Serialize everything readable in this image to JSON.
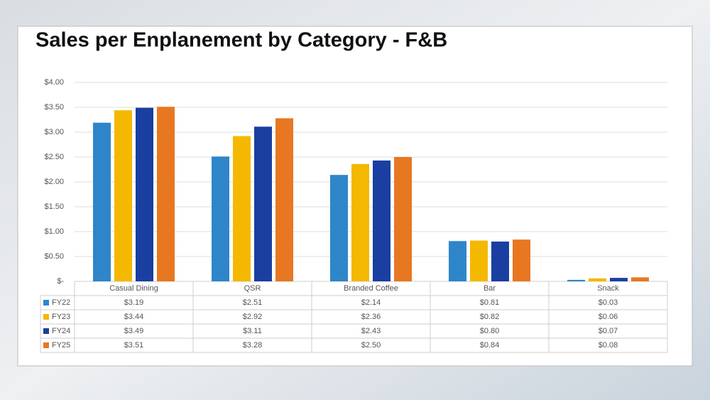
{
  "chart_data": {
    "type": "bar",
    "title": "Sales per Enplanement by Category - F&B",
    "categories": [
      "Casual Dining",
      "QSR",
      "Branded Coffee",
      "Bar",
      "Snack"
    ],
    "series": [
      {
        "name": "FY22",
        "color": "#2e86c9",
        "values": [
          3.19,
          2.51,
          2.14,
          0.81,
          0.03
        ],
        "value_labels": [
          "$3.19",
          "$2.51",
          "$2.14",
          "$0.81",
          "$0.03"
        ]
      },
      {
        "name": "FY23",
        "color": "#f5b800",
        "values": [
          3.44,
          2.92,
          2.36,
          0.82,
          0.06
        ],
        "value_labels": [
          "$3.44",
          "$2.92",
          "$2.36",
          "$0.82",
          "$0.06"
        ]
      },
      {
        "name": "FY24",
        "color": "#1a3fa0",
        "values": [
          3.49,
          3.11,
          2.43,
          0.8,
          0.07
        ],
        "value_labels": [
          "$3.49",
          "$3.11",
          "$2.43",
          "$0.80",
          "$0.07"
        ]
      },
      {
        "name": "FY25",
        "color": "#e87722",
        "values": [
          3.51,
          3.28,
          2.5,
          0.84,
          0.08
        ],
        "value_labels": [
          "$3.51",
          "$3.28",
          "$2.50",
          "$0.84",
          "$0.08"
        ]
      }
    ],
    "ylim": [
      0,
      4
    ],
    "yticks": [
      {
        "value": 0,
        "label": "$-"
      },
      {
        "value": 0.5,
        "label": "$0.50"
      },
      {
        "value": 1,
        "label": "$1.00"
      },
      {
        "value": 1.5,
        "label": "$1.50"
      },
      {
        "value": 2,
        "label": "$2.00"
      },
      {
        "value": 2.5,
        "label": "$2.50"
      },
      {
        "value": 3,
        "label": "$3.00"
      },
      {
        "value": 3.5,
        "label": "$3.50"
      },
      {
        "value": 4,
        "label": "$4.00"
      }
    ],
    "grid": true
  }
}
